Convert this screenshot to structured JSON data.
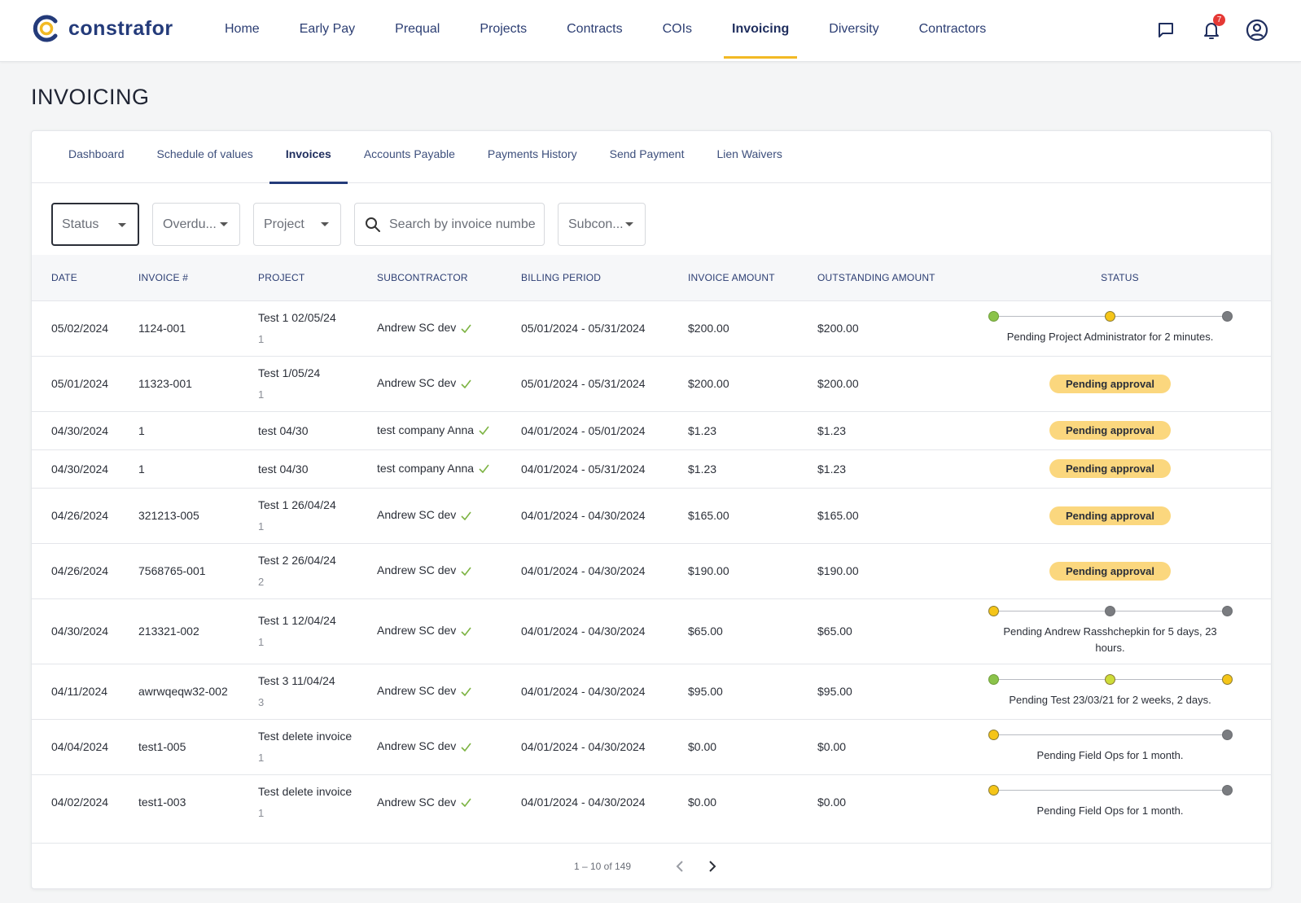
{
  "app": {
    "brand": "constrafor",
    "nav": [
      {
        "label": "Home",
        "active": false
      },
      {
        "label": "Early Pay",
        "active": false
      },
      {
        "label": "Prequal",
        "active": false
      },
      {
        "label": "Projects",
        "active": false
      },
      {
        "label": "Contracts",
        "active": false
      },
      {
        "label": "COIs",
        "active": false
      },
      {
        "label": "Invoicing",
        "active": true
      },
      {
        "label": "Diversity",
        "active": false
      },
      {
        "label": "Contractors",
        "active": false
      }
    ],
    "notifications_count": "7",
    "icons": {
      "messages": "chat-icon",
      "notifications": "bell-icon",
      "account": "user-circle-icon"
    },
    "colors": {
      "brand": "#243b7a",
      "accent": "#f2b924",
      "pill": "#fbd77e",
      "dot_green": "#8bc34a",
      "dot_yellow": "#f5c518",
      "dot_lime": "#cddc39",
      "dot_gray": "#7a7c80"
    }
  },
  "page": {
    "title": "INVOICING",
    "tabs": [
      {
        "label": "Dashboard",
        "active": false
      },
      {
        "label": "Schedule of values",
        "active": false
      },
      {
        "label": "Invoices",
        "active": true
      },
      {
        "label": "Accounts Payable",
        "active": false
      },
      {
        "label": "Payments History",
        "active": false
      },
      {
        "label": "Send Payment",
        "active": false
      },
      {
        "label": "Lien Waivers",
        "active": false
      }
    ],
    "filters": {
      "status": "Status",
      "overdue": "Overdu...",
      "project": "Project",
      "search_placeholder": "Search by invoice number",
      "subcontractor": "Subcon..."
    },
    "columns": [
      "DATE",
      "INVOICE #",
      "PROJECT",
      "SUBCONTRACTOR",
      "BILLING PERIOD",
      "INVOICE AMOUNT",
      "OUTSTANDING AMOUNT",
      "STATUS"
    ],
    "rows": [
      {
        "date": "05/02/2024",
        "invoice": "1124-001",
        "project": "Test 1 02/05/24",
        "project_sub": "1",
        "subcontractor": "Andrew SC dev",
        "billing": "05/01/2024 - 05/31/2024",
        "amount": "$200.00",
        "outstanding": "$200.00",
        "status_type": "progress",
        "dots": [
          "green",
          "yellow",
          "gray"
        ],
        "status_text": "Pending Project Administrator for 2 minutes."
      },
      {
        "date": "05/01/2024",
        "invoice": "11323-001",
        "project": "Test 1/05/24",
        "project_sub": "1",
        "subcontractor": "Andrew SC dev",
        "billing": "05/01/2024 - 05/31/2024",
        "amount": "$200.00",
        "outstanding": "$200.00",
        "status_type": "pill",
        "status_text": "Pending approval"
      },
      {
        "date": "04/30/2024",
        "invoice": "1",
        "project": "test 04/30",
        "project_sub": "",
        "subcontractor": "test company Anna",
        "billing": "04/01/2024 - 05/01/2024",
        "amount": "$1.23",
        "outstanding": "$1.23",
        "status_type": "pill",
        "status_text": "Pending approval"
      },
      {
        "date": "04/30/2024",
        "invoice": "1",
        "project": "test 04/30",
        "project_sub": "",
        "subcontractor": "test company Anna",
        "billing": "04/01/2024 - 05/31/2024",
        "amount": "$1.23",
        "outstanding": "$1.23",
        "status_type": "pill",
        "status_text": "Pending approval"
      },
      {
        "date": "04/26/2024",
        "invoice": "321213-005",
        "project": "Test 1 26/04/24",
        "project_sub": "1",
        "subcontractor": "Andrew SC dev",
        "billing": "04/01/2024 - 04/30/2024",
        "amount": "$165.00",
        "outstanding": "$165.00",
        "status_type": "pill",
        "status_text": "Pending approval"
      },
      {
        "date": "04/26/2024",
        "invoice": "7568765-001",
        "project": "Test 2 26/04/24",
        "project_sub": "2",
        "subcontractor": "Andrew SC dev",
        "billing": "04/01/2024 - 04/30/2024",
        "amount": "$190.00",
        "outstanding": "$190.00",
        "status_type": "pill",
        "status_text": "Pending approval"
      },
      {
        "date": "04/30/2024",
        "invoice": "213321-002",
        "project": "Test 1 12/04/24",
        "project_sub": "1",
        "subcontractor": "Andrew SC dev",
        "billing": "04/01/2024 - 04/30/2024",
        "amount": "$65.00",
        "outstanding": "$65.00",
        "status_type": "progress",
        "dots": [
          "yellow",
          "gray",
          "gray"
        ],
        "status_text": "Pending Andrew Rasshchepkin for 5 days, 23 hours."
      },
      {
        "date": "04/11/2024",
        "invoice": "awrwqeqw32-002",
        "project": "Test 3 11/04/24",
        "project_sub": "3",
        "subcontractor": "Andrew SC dev",
        "billing": "04/01/2024 - 04/30/2024",
        "amount": "$95.00",
        "outstanding": "$95.00",
        "status_type": "progress",
        "dots": [
          "green",
          "lime",
          "yellow"
        ],
        "status_text": "Pending Test 23/03/21 for 2 weeks, 2 days."
      },
      {
        "date": "04/04/2024",
        "invoice": "test1-005",
        "project": "Test delete invoice",
        "project_sub": "1",
        "subcontractor": "Andrew SC dev",
        "billing": "04/01/2024 - 04/30/2024",
        "amount": "$0.00",
        "outstanding": "$0.00",
        "status_type": "progress",
        "dots": [
          "yellow",
          "gray"
        ],
        "status_text": "Pending Field Ops for 1 month."
      },
      {
        "date": "04/02/2024",
        "invoice": "test1-003",
        "project": "Test delete invoice",
        "project_sub": "1",
        "subcontractor": "Andrew SC dev",
        "billing": "04/01/2024 - 04/30/2024",
        "amount": "$0.00",
        "outstanding": "$0.00",
        "status_type": "progress",
        "dots": [
          "yellow",
          "gray"
        ],
        "status_text": "Pending Field Ops for 1 month."
      }
    ],
    "pagination": {
      "range": "1 – 10 of 149",
      "prev_icon": "chevron-left-icon",
      "next_icon": "chevron-right-icon"
    }
  }
}
